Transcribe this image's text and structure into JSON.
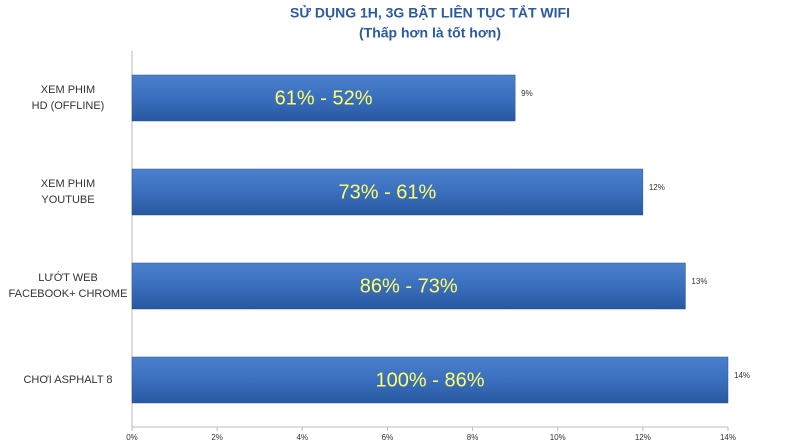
{
  "chart_data": {
    "type": "bar",
    "orientation": "horizontal",
    "title": "SỬ DỤNG 1H, 3G BẬT LIÊN TỤC TẮT WIFI",
    "subtitle": "(Thấp hơn là tốt hơn)",
    "categories": [
      "XEM PHIM\nHD (OFFLINE)",
      "XEM PHIM\nYOUTUBE",
      "LƯỚT WEB\nFACEBOOK+ CHROME",
      "CHƠI ASPHALT 8"
    ],
    "values": [
      9,
      12,
      13,
      14
    ],
    "value_labels": [
      "9%",
      "12%",
      "13%",
      "14%"
    ],
    "bar_texts": [
      "61% - 52%",
      "73% - 61%",
      "86% - 73%",
      "100% - 86%"
    ],
    "color": "#3a6fbf",
    "xlim": [
      0,
      14
    ],
    "xticks": [
      {
        "value": 0,
        "label": "0%"
      },
      {
        "value": 2,
        "label": "2%"
      },
      {
        "value": 4,
        "label": "4%"
      },
      {
        "value": 6,
        "label": "6%"
      },
      {
        "value": 8,
        "label": "8%"
      },
      {
        "value": 10,
        "label": "10%"
      },
      {
        "value": 12,
        "label": "12%"
      },
      {
        "value": 14,
        "label": "14%"
      }
    ]
  }
}
